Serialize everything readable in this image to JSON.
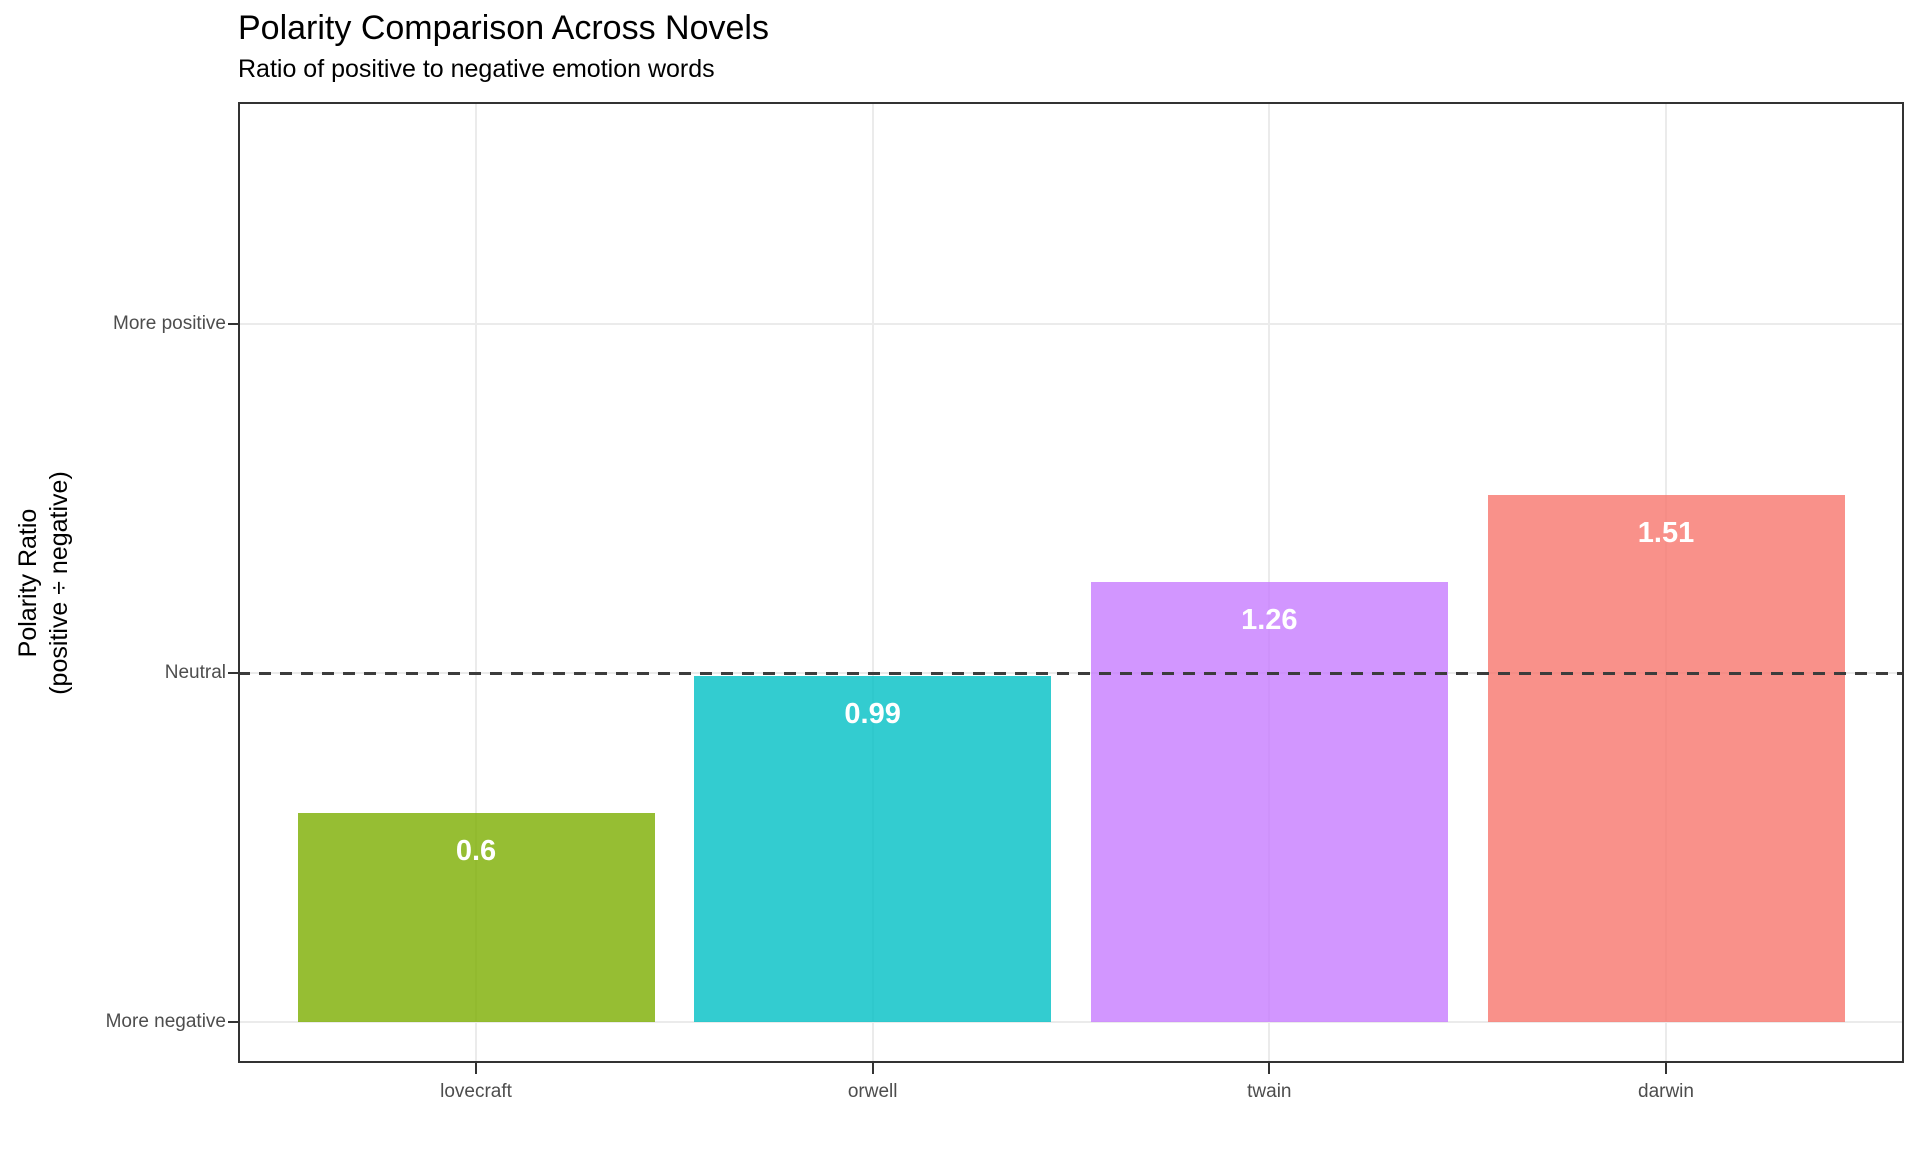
{
  "chart_data": {
    "type": "bar",
    "title": "Polarity Comparison Across Novels",
    "subtitle": "Ratio of positive to negative emotion words",
    "ylabel_line1": "Polarity Ratio",
    "ylabel_line2": "(positive ÷ negative)",
    "xlabel": "",
    "categories": [
      "lovecraft",
      "orwell",
      "twain",
      "darwin"
    ],
    "values": [
      0.6,
      0.99,
      1.26,
      1.51
    ],
    "bar_labels": [
      "0.6",
      "0.99",
      "1.26",
      "1.51"
    ],
    "bar_colors": [
      "#7CAE00",
      "#00BFC4",
      "#C77CFF",
      "#F8766D"
    ],
    "bar_alpha": 0.8,
    "bar_label_color": "#FFFFFF",
    "y_ticks": [
      {
        "value": 2,
        "label": "More positive"
      },
      {
        "value": 1,
        "label": "Neutral"
      },
      {
        "value": 0,
        "label": "More negative"
      }
    ],
    "ylim": [
      -0.12,
      2.63
    ],
    "reference_line": {
      "value": 1,
      "style": "dashed",
      "color": "#3C3C3C"
    },
    "grid": "major",
    "legend": "none"
  },
  "colors": {
    "background": "#FFFFFF",
    "panel_border": "#333333",
    "gridline": "#EBEBEB",
    "axis_text": "#4D4D4D",
    "title_text": "#000000"
  }
}
